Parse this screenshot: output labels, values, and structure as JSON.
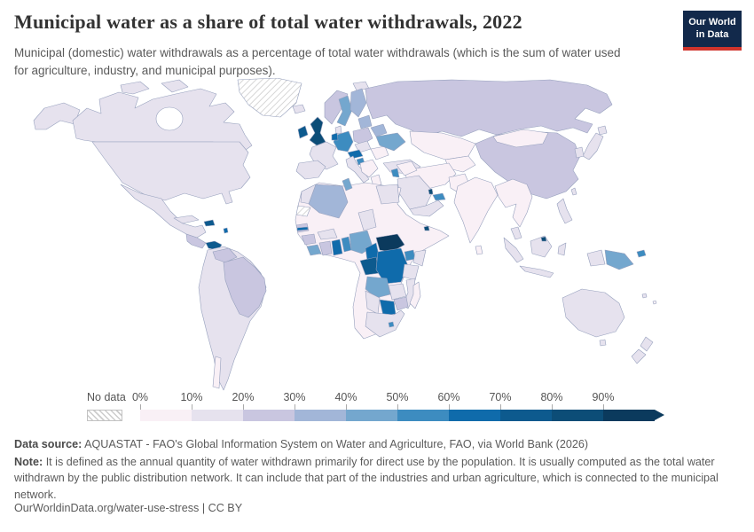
{
  "header": {
    "title": "Municipal water as a share of total water withdrawals, 2022",
    "subtitle": "Municipal (domestic) water withdrawals as a percentage of total water withdrawals (which is the sum of water used for agriculture, industry, and municipal purposes).",
    "logo": {
      "line1": "Our World",
      "line2": "in Data",
      "bg": "#12294b",
      "accent": "#d0342c"
    }
  },
  "chart_data": {
    "type": "choropleth_map",
    "title": "Municipal water as a share of total water withdrawals",
    "year": "2022",
    "unit": "% of total water withdrawals",
    "legend": {
      "no_data_label": "No data",
      "tick_labels": [
        "0%",
        "10%",
        "20%",
        "30%",
        "40%",
        "50%",
        "60%",
        "70%",
        "80%",
        "90%"
      ],
      "bin_edges_percent": [
        0,
        10,
        20,
        30,
        40,
        50,
        60,
        70,
        80,
        90,
        100
      ],
      "colors": [
        "#f9f0f6",
        "#e6e2ee",
        "#c9c6e0",
        "#a2b6d8",
        "#74a7ce",
        "#3d8cc0",
        "#0f6bab",
        "#0d5a8e",
        "#0c4d77",
        "#0b3a5d"
      ],
      "no_data_pattern": "diagonal-hatch",
      "arrow_color": "#0b3a5d"
    },
    "regions": {
      "alaska": 1,
      "canada": 1,
      "arctic-islands-1": 1,
      "arctic-islands-2": 1,
      "greenland": "nd",
      "iceland": 1,
      "svalbard": 1,
      "usa": 1,
      "mexico": 1,
      "central-america": 2,
      "panama": 7,
      "cuba": 1,
      "hispaniola": 7,
      "lesser-antilles": 6,
      "south-america": 1,
      "venezuela": 2,
      "brazil": 2,
      "chile": 0,
      "ireland": 7,
      "uk": 8,
      "norway": 2,
      "sweden": 4,
      "finland": 3,
      "baltics": 3,
      "denmark": 1,
      "france": 1,
      "iberia": 1,
      "germany": 5,
      "benelux": 6,
      "poland": 2,
      "czech-hungary": 1,
      "austria": 6,
      "italy": 1,
      "croatia": 5,
      "balkans": 0,
      "romania": 0,
      "greece": 0,
      "belarus": 3,
      "ukraine": 4,
      "turkey": 1,
      "russia": 2,
      "kazakhstan": 0,
      "central-asia": 0,
      "china": 2,
      "mongolia": 0,
      "japan": 1,
      "korea": 1,
      "india": 0,
      "pakistan": 0,
      "iran-plateau": 0,
      "iraq-syria": 0,
      "jordan-israel": 5,
      "saudi-arabia": 1,
      "qatar": 8,
      "uae": 5,
      "yemen-oman": 1,
      "se-asia": 0,
      "malay-peninsula": 1,
      "sumatra": 1,
      "java": 1,
      "borneo": 1,
      "brunei": 8,
      "sulawesi": 1,
      "philippines": 1,
      "taiwan": 1,
      "sri-lanka": 0,
      "west-papua": 1,
      "papua-new-guinea": 4,
      "new-britain": 5,
      "africa-base": 0,
      "morocco": 1,
      "western-sahara": "nd",
      "algeria": 3,
      "tunisia": 4,
      "egypt": 1,
      "chad": 1,
      "senegal": 2,
      "gambia": 6,
      "guinea": 2,
      "liberia": 4,
      "ivory-coast": 2,
      "ghana": 6,
      "togo-benin": 5,
      "burkina-faso": 1,
      "nigeria": 4,
      "cameroon": 6,
      "central-african-republic": 9,
      "djibouti": 8,
      "gabon-congo": 7,
      "drc": 6,
      "uganda": 5,
      "kenya": 1,
      "tanzania": 1,
      "angola": 4,
      "zambia": 1,
      "mozambique": 1,
      "zimbabwe": 2,
      "botswana": 6,
      "namibia": 1,
      "south-africa": 1,
      "lesotho": 5,
      "madagascar": 0,
      "australia": 1,
      "tasmania": 1,
      "new-zealand-north": 1,
      "new-zealand-south": 1,
      "pacific-island-1": 1,
      "pacific-island-2": 0
    }
  },
  "footer": {
    "datasource_label": "Data source:",
    "datasource": "AQUASTAT - FAO's Global Information System on Water and Agriculture, FAO, via World Bank (2026)",
    "note_label": "Note:",
    "note": "It is defined as the annual quantity of water withdrawn primarily for direct use by the population. It is usually computed as the total water withdrawn by the public distribution network. It can include that part of the industries and urban agriculture, which is connected to the municipal network.",
    "citation": "OurWorldinData.org/water-use-stress | CC BY"
  }
}
